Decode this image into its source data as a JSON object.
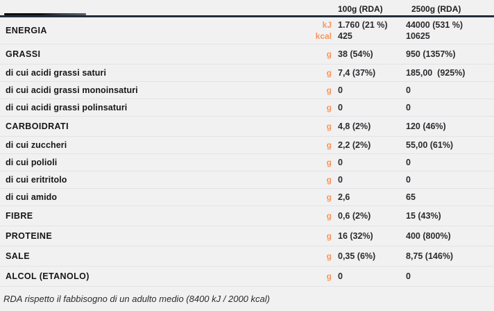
{
  "colors": {
    "background": "#f1f1f2",
    "accent_orange": "#f8955a",
    "header_line_navy": "#222d3b",
    "row_separator": "#e3e3e8",
    "label_text": "#161616",
    "value_text": "#2b2b2d"
  },
  "header": {
    "col1_label": "100g (RDA)",
    "col2_label": "2500g (RDA)"
  },
  "rows": [
    {
      "type": "section",
      "label": "ENERGIA",
      "units": [
        "kJ",
        "kcal"
      ],
      "col1": [
        "1.760 (21 %)",
        "425"
      ],
      "col2": [
        "44000 (531 %)",
        "10625"
      ]
    },
    {
      "type": "section",
      "label": "GRASSI",
      "unit": "g",
      "col1": "38 (54%)",
      "col2": "950 (1357%)"
    },
    {
      "type": "sub",
      "label": "di cui acidi grassi saturi",
      "unit": "g",
      "col1": "7,4 (37%)",
      "col2": "185,00  (925%)"
    },
    {
      "type": "sub",
      "label": "di cui acidi grassi monoinsaturi",
      "unit": "g",
      "col1": "0",
      "col2": "0"
    },
    {
      "type": "sub",
      "label": "di cui acidi grassi polinsaturi",
      "unit": "g",
      "col1": "0",
      "col2": "0"
    },
    {
      "type": "section",
      "label": "CARBOIDRATI",
      "unit": "g",
      "col1": "4,8 (2%)",
      "col2": "120 (46%)"
    },
    {
      "type": "sub",
      "label": "di cui zuccheri",
      "unit": "g",
      "col1": "2,2 (2%)",
      "col2": "55,00 (61%)"
    },
    {
      "type": "sub",
      "label": "di cui polioli",
      "unit": "g",
      "col1": "0",
      "col2": "0"
    },
    {
      "type": "sub",
      "label": "di cui eritritolo",
      "unit": "g",
      "col1": "0",
      "col2": "0"
    },
    {
      "type": "sub",
      "label": "di cui amido",
      "unit": "g",
      "col1": "2,6",
      "col2": "65"
    },
    {
      "type": "section",
      "label": "FIBRE",
      "unit": "g",
      "col1": "0,6 (2%)",
      "col2": "15 (43%)"
    },
    {
      "type": "section",
      "label": "PROTEINE",
      "unit": "g",
      "col1": "16 (32%)",
      "col2": "400 (800%)"
    },
    {
      "type": "section",
      "label": "SALE",
      "unit": "g",
      "col1": "0,35 (6%)",
      "col2": "8,75 (146%)"
    },
    {
      "type": "section",
      "label": "ALCOL (ETANOLO)",
      "unit": "g",
      "col1": "0",
      "col2": "0"
    }
  ],
  "footer": {
    "note": "RDA rispetto il fabbisogno di un adulto medio (8400 kJ / 2000 kcal)"
  }
}
